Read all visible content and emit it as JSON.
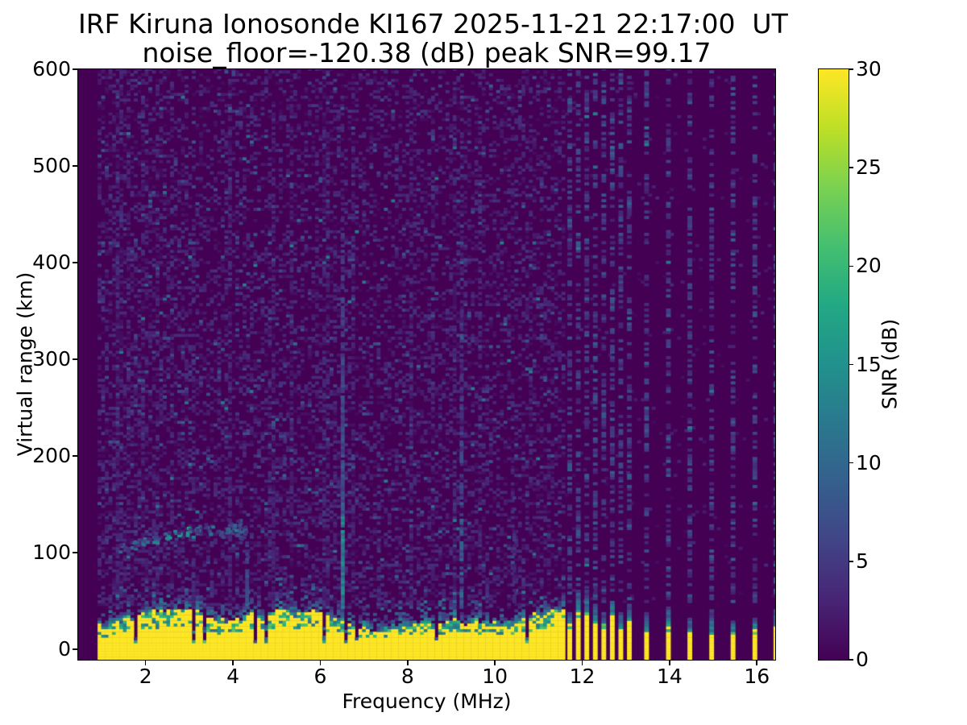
{
  "title": {
    "line1": "IRF Kiruna Ionosonde KI167 2025-11-21 22:17:00  UT",
    "line2": "noise_floor=-120.38 (dB) peak SNR=99.17"
  },
  "chart_data": {
    "type": "heatmap",
    "title": "IRF Kiruna Ionosonde KI167 2025-11-21 22:17:00  UT",
    "subtitle": "noise_floor=-120.38 (dB) peak SNR=99.17",
    "station": "IRF Kiruna Ionosonde KI167",
    "timestamp_ut": "2025-11-21 22:17:00",
    "noise_floor_db": -120.38,
    "peak_snr_db": 99.17,
    "xlabel": "Frequency (MHz)",
    "ylabel": "Virtual range (km)",
    "xlim": [
      0.455,
      16.42
    ],
    "ylim": [
      -11,
      600
    ],
    "xticks": [
      2,
      4,
      6,
      8,
      10,
      12,
      14,
      16
    ],
    "yticks": [
      0,
      100,
      200,
      300,
      400,
      500,
      600
    ],
    "grid": false,
    "colormap": {
      "name": "viridis",
      "stops": [
        [
          0,
          "#440154"
        ],
        [
          0.1,
          "#482475"
        ],
        [
          0.2,
          "#414487"
        ],
        [
          0.3,
          "#355f8d"
        ],
        [
          0.4,
          "#2a788e"
        ],
        [
          0.5,
          "#21918c"
        ],
        [
          0.6,
          "#22a884"
        ],
        [
          0.7,
          "#44bf70"
        ],
        [
          0.8,
          "#7ad151"
        ],
        [
          0.9,
          "#bddf26"
        ],
        [
          1,
          "#fde725"
        ]
      ]
    },
    "colorbar": {
      "label": "SNR (dB)",
      "range": [
        0,
        30
      ],
      "ticks": [
        0,
        5,
        10,
        15,
        20,
        25,
        30
      ],
      "position": "right"
    },
    "seed": 1337,
    "sweep": {
      "start_mhz": 0.9,
      "continuous_until_mhz": 11.6,
      "freq_step_mhz": 0.083,
      "range_step_km": 2.9,
      "dense_freqs_mhz": [
        11.66,
        11.855,
        12.05,
        12.245,
        12.44,
        12.635,
        12.83,
        13.025
      ],
      "sparse_freqs_mhz": [
        13.42,
        13.92,
        14.41,
        14.91,
        15.4,
        15.9,
        16.38
      ]
    },
    "features": {
      "noise_speckle": {
        "probability": 0.38,
        "snr_db_range": [
          0.5,
          8
        ]
      },
      "ground_clutter": {
        "freq_span_mhz": [
          0.9,
          11.6
        ],
        "solid_top_km_range": [
          16,
          40
        ],
        "fringe_km_max": 58,
        "snr_db": 30
      },
      "sporadic_e_trace": {
        "snr_db_range": [
          8,
          20
        ],
        "points_mhz_km_db": [
          [
            1.45,
            103,
            8
          ],
          [
            1.7,
            106,
            9
          ],
          [
            1.95,
            109,
            10
          ],
          [
            2.2,
            112,
            11
          ],
          [
            2.45,
            115,
            13
          ],
          [
            2.7,
            118,
            16
          ],
          [
            2.95,
            120,
            17
          ],
          [
            3.2,
            122,
            13
          ],
          [
            3.45,
            121,
            10
          ],
          [
            3.7,
            118,
            9
          ],
          [
            3.85,
            122,
            12
          ],
          [
            3.95,
            126,
            11
          ],
          [
            4.1,
            125,
            10
          ],
          [
            4.2,
            120,
            9
          ],
          [
            4.1,
            115,
            8
          ]
        ]
      },
      "rfi_streaks": [
        {
          "freq_mhz": 3.05,
          "top_km": 420,
          "strength": 0.45
        },
        {
          "freq_mhz": 4.28,
          "top_km": 110,
          "strength": 1.3
        },
        {
          "freq_mhz": 5.15,
          "top_km": 300,
          "strength": 0.45
        },
        {
          "freq_mhz": 6.47,
          "top_km": 470,
          "strength": 1.6
        },
        {
          "freq_mhz": 7.3,
          "top_km": 220,
          "strength": 0.5
        },
        {
          "freq_mhz": 9.19,
          "top_km": 340,
          "strength": 1.0
        },
        {
          "freq_mhz": 10.4,
          "top_km": 160,
          "strength": 0.6
        }
      ]
    }
  }
}
